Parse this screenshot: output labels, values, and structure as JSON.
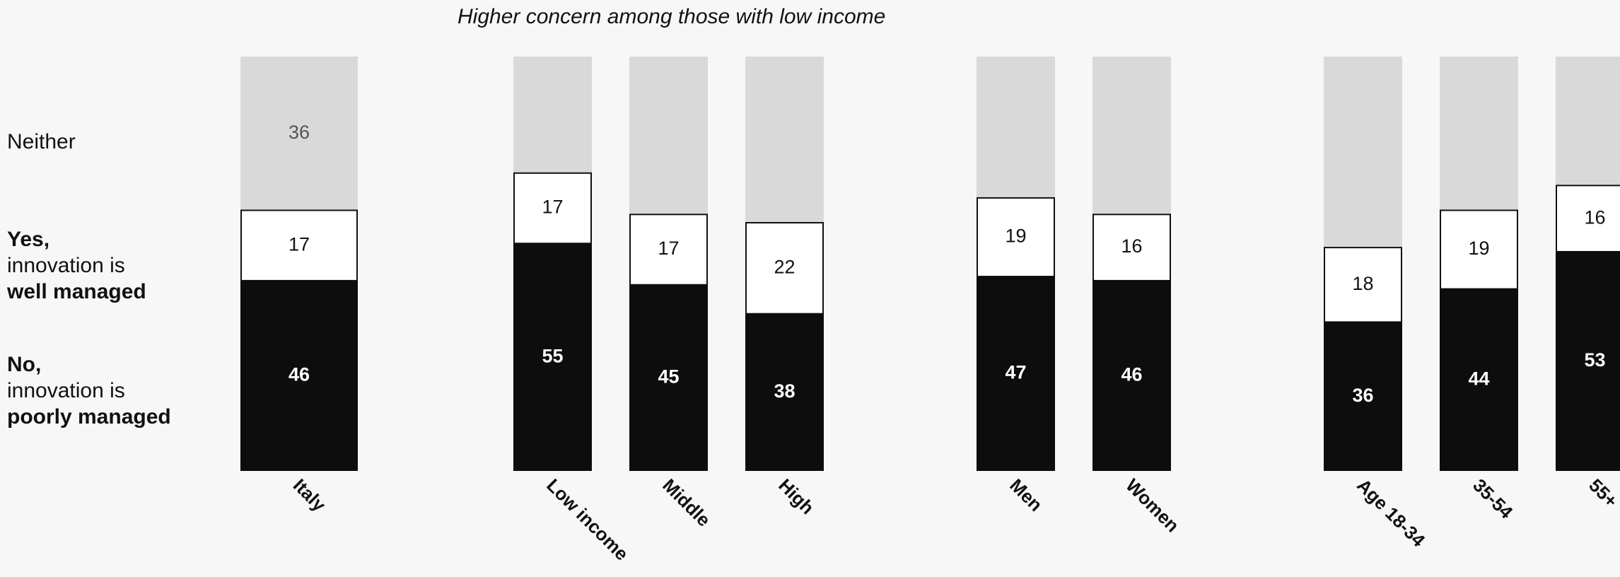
{
  "subtitle": "Higher concern among those with low income",
  "legend": {
    "neither": "Neither",
    "yes_line1": "Yes,",
    "yes_line2": "innovation is",
    "yes_line3": "well managed",
    "no_line1": "No,",
    "no_line2": "innovation is",
    "no_line3": "poorly managed"
  },
  "colors": {
    "no": "#0d0d0d",
    "yes": "#ffffff",
    "neither": "#d9d9d9"
  },
  "chart_data": {
    "type": "bar",
    "stacked": true,
    "percent_scale": true,
    "categories": [
      "Italy",
      "Low income",
      "Middle",
      "High",
      "Men",
      "Women",
      "Age 18-34",
      "35-54",
      "55+"
    ],
    "groups": [
      [
        "Italy"
      ],
      [
        "Low income",
        "Middle",
        "High"
      ],
      [
        "Men",
        "Women"
      ],
      [
        "Age 18-34",
        "35-54",
        "55+"
      ]
    ],
    "series": [
      {
        "name": "No, innovation is poorly managed",
        "values": [
          46,
          55,
          45,
          38,
          47,
          46,
          36,
          44,
          53
        ]
      },
      {
        "name": "Yes, innovation is well managed",
        "values": [
          17,
          17,
          17,
          22,
          19,
          16,
          18,
          19,
          16
        ]
      },
      {
        "name": "Neither",
        "values": [
          36,
          null,
          null,
          null,
          null,
          null,
          null,
          null,
          null
        ]
      }
    ]
  }
}
